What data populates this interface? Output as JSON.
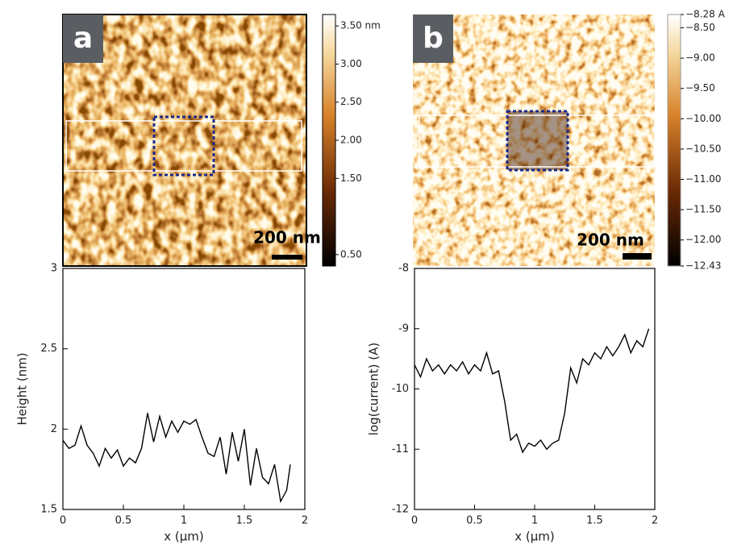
{
  "chart_data": [
    {
      "type": "image",
      "panel_label": "a",
      "scale_bar_label": "200 nm",
      "clim": [
        0.35,
        3.65
      ],
      "colorbar_ticks": [
        {
          "value": 3.5,
          "label": "3.50 nm"
        },
        {
          "value": 3.0,
          "label": "3.00"
        },
        {
          "value": 2.5,
          "label": "2.50"
        },
        {
          "value": 2.0,
          "label": "2.00"
        },
        {
          "value": 1.5,
          "label": "1.50"
        },
        {
          "value": 0.5,
          "label": "0.50"
        }
      ]
    },
    {
      "type": "image",
      "panel_label": "b",
      "scale_bar_label": "200 nm",
      "clim": [
        -12.43,
        -8.28
      ],
      "colorbar_ticks": [
        {
          "value": -8.28,
          "label": "−8.28 A"
        },
        {
          "value": -8.5,
          "label": "−8.50"
        },
        {
          "value": -9.0,
          "label": "−9.00"
        },
        {
          "value": -9.5,
          "label": "−9.50"
        },
        {
          "value": -10.0,
          "label": "−10.00"
        },
        {
          "value": -10.5,
          "label": "−10.50"
        },
        {
          "value": -11.0,
          "label": "−11.00"
        },
        {
          "value": -11.5,
          "label": "−11.50"
        },
        {
          "value": -12.0,
          "label": "−12.00"
        },
        {
          "value": -12.43,
          "label": "−12.43"
        }
      ]
    },
    {
      "type": "line",
      "x_label": "x (μm)",
      "y_label": "Height (nm)",
      "color": "#000000",
      "xlim": [
        0,
        2
      ],
      "xticks": [
        0,
        0.5,
        1,
        1.5,
        2
      ],
      "ylim": [
        1.5,
        3
      ],
      "yticks": [
        1.5,
        2,
        2.5,
        3
      ],
      "x": [
        0,
        0.05,
        0.1,
        0.15,
        0.2,
        0.25,
        0.3,
        0.35,
        0.4,
        0.45,
        0.5,
        0.55,
        0.6,
        0.65,
        0.7,
        0.75,
        0.8,
        0.85,
        0.9,
        0.95,
        1.0,
        1.05,
        1.1,
        1.15,
        1.2,
        1.25,
        1.3,
        1.35,
        1.4,
        1.45,
        1.5,
        1.55,
        1.6,
        1.65,
        1.7,
        1.75,
        1.8,
        1.85,
        1.88
      ],
      "values": [
        1.93,
        1.88,
        1.9,
        2.02,
        1.9,
        1.85,
        1.77,
        1.88,
        1.82,
        1.87,
        1.77,
        1.82,
        1.79,
        1.88,
        2.1,
        1.92,
        2.08,
        1.95,
        2.05,
        1.98,
        2.05,
        2.03,
        2.06,
        1.95,
        1.85,
        1.83,
        1.95,
        1.72,
        1.98,
        1.8,
        2.0,
        1.65,
        1.88,
        1.7,
        1.66,
        1.78,
        1.55,
        1.62,
        1.78
      ]
    },
    {
      "type": "line",
      "x_label": "x (μm)",
      "y_label": "log(current) (A)",
      "color": "#000000",
      "xlim": [
        0,
        2
      ],
      "xticks": [
        0,
        0.5,
        1,
        1.5,
        2
      ],
      "ylim": [
        -12,
        -8
      ],
      "yticks": [
        -12,
        -11,
        -10,
        -9,
        -8
      ],
      "x": [
        0,
        0.05,
        0.1,
        0.15,
        0.2,
        0.25,
        0.3,
        0.35,
        0.4,
        0.45,
        0.5,
        0.55,
        0.6,
        0.65,
        0.7,
        0.75,
        0.8,
        0.85,
        0.9,
        0.95,
        1.0,
        1.05,
        1.1,
        1.15,
        1.2,
        1.25,
        1.3,
        1.35,
        1.4,
        1.45,
        1.5,
        1.55,
        1.6,
        1.65,
        1.7,
        1.75,
        1.8,
        1.85,
        1.9,
        1.95
      ],
      "values": [
        -9.6,
        -9.8,
        -9.5,
        -9.7,
        -9.6,
        -9.75,
        -9.6,
        -9.7,
        -9.55,
        -9.75,
        -9.6,
        -9.7,
        -9.4,
        -9.75,
        -9.7,
        -10.2,
        -10.85,
        -10.75,
        -11.05,
        -10.9,
        -10.95,
        -10.85,
        -11.0,
        -10.9,
        -10.85,
        -10.4,
        -9.65,
        -9.9,
        -9.5,
        -9.6,
        -9.4,
        -9.5,
        -9.3,
        -9.45,
        -9.3,
        -9.1,
        -9.4,
        -9.2,
        -9.3,
        -9.0
      ]
    }
  ]
}
